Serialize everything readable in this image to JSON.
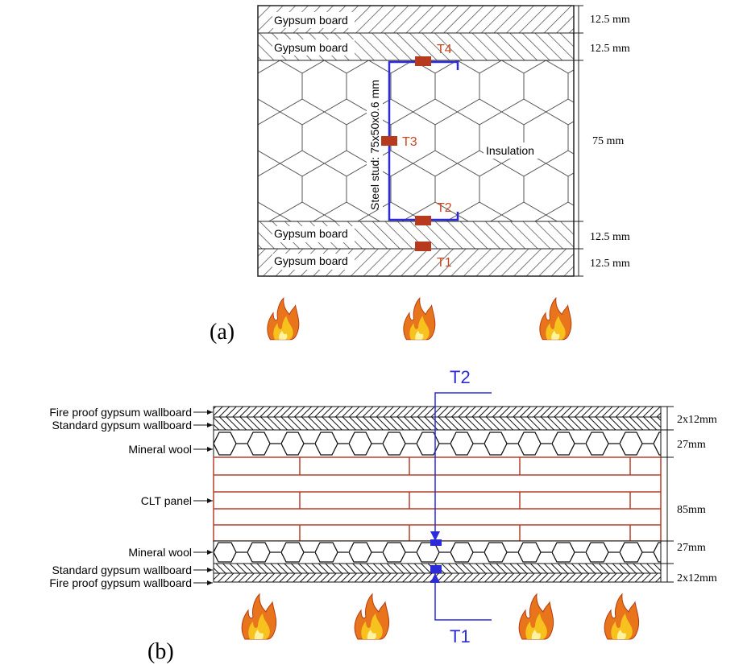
{
  "figure_a": {
    "label": "(a)",
    "layers": [
      "Gypsum board",
      "Gypsum board",
      "Gypsum board",
      "Gypsum board"
    ],
    "dimensions": [
      "12.5 mm",
      "12.5 mm",
      "75 mm",
      "12.5 mm",
      "12.5 mm"
    ],
    "stud": "Steel stud: 75x50x0.6 mm",
    "insulation": "Insulation",
    "sensors": [
      "T4",
      "T3",
      "T2",
      "T1"
    ]
  },
  "figure_b": {
    "label": "(b)",
    "layers": [
      "Fire proof gypsum wallboard",
      "Standard gypsum wallboard",
      "Mineral wool",
      "CLT panel",
      "Mineral wool",
      "Standard gypsum wallboard",
      "Fire proof gypsum wallboard"
    ],
    "dimensions": [
      "2x12mm",
      "27mm",
      "85mm",
      "27mm",
      "2x12mm"
    ],
    "sensors": [
      "T2",
      "T1"
    ]
  }
}
